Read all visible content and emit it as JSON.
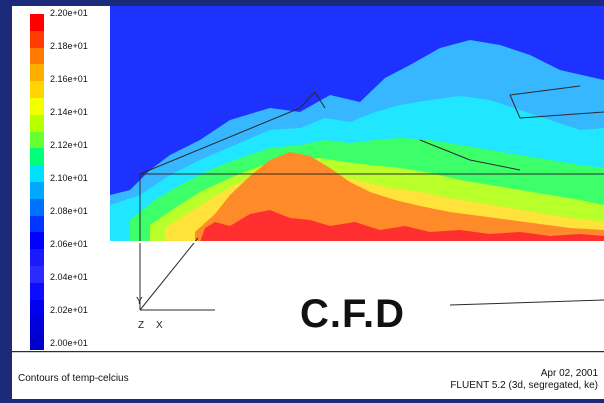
{
  "window": {
    "title": "Contours of temp-celcius",
    "date": "Apr 02, 2001",
    "solver": "FLUENT 5.2 (3d, segregated, ke)"
  },
  "overlay_text": "C.F.D",
  "axes": {
    "y": "Y",
    "z": "Z",
    "x": "X"
  },
  "legend": {
    "labels": [
      "2.20e+01",
      "2.18e+01",
      "2.16e+01",
      "2.14e+01",
      "2.12e+01",
      "2.10e+01",
      "2.08e+01",
      "2.06e+01",
      "2.04e+01",
      "2.02e+01",
      "2.00e+01"
    ],
    "colors": [
      "#ff0000",
      "#ff3b00",
      "#ff7a00",
      "#ffae00",
      "#ffd400",
      "#f2ff00",
      "#b8ff00",
      "#66ff33",
      "#00ff7a",
      "#00e0ff",
      "#00a9ff",
      "#0070ff",
      "#0036ff",
      "#0000ff",
      "#1a1aff",
      "#2b2bff",
      "#0c0cff",
      "#0000ee",
      "#0000dd",
      "#0000cc"
    ]
  },
  "contours": {
    "colors": {
      "hot": "#ff2f2f",
      "orange": "#ff8a2a",
      "yellow": "#ffe23a",
      "lime": "#b9ff2a",
      "green": "#3cff6a",
      "cyan": "#20e7ff",
      "sky": "#37b7ff",
      "blue": "#1f5dff",
      "deep": "#1d31ff",
      "bg": "#ffffff"
    }
  }
}
